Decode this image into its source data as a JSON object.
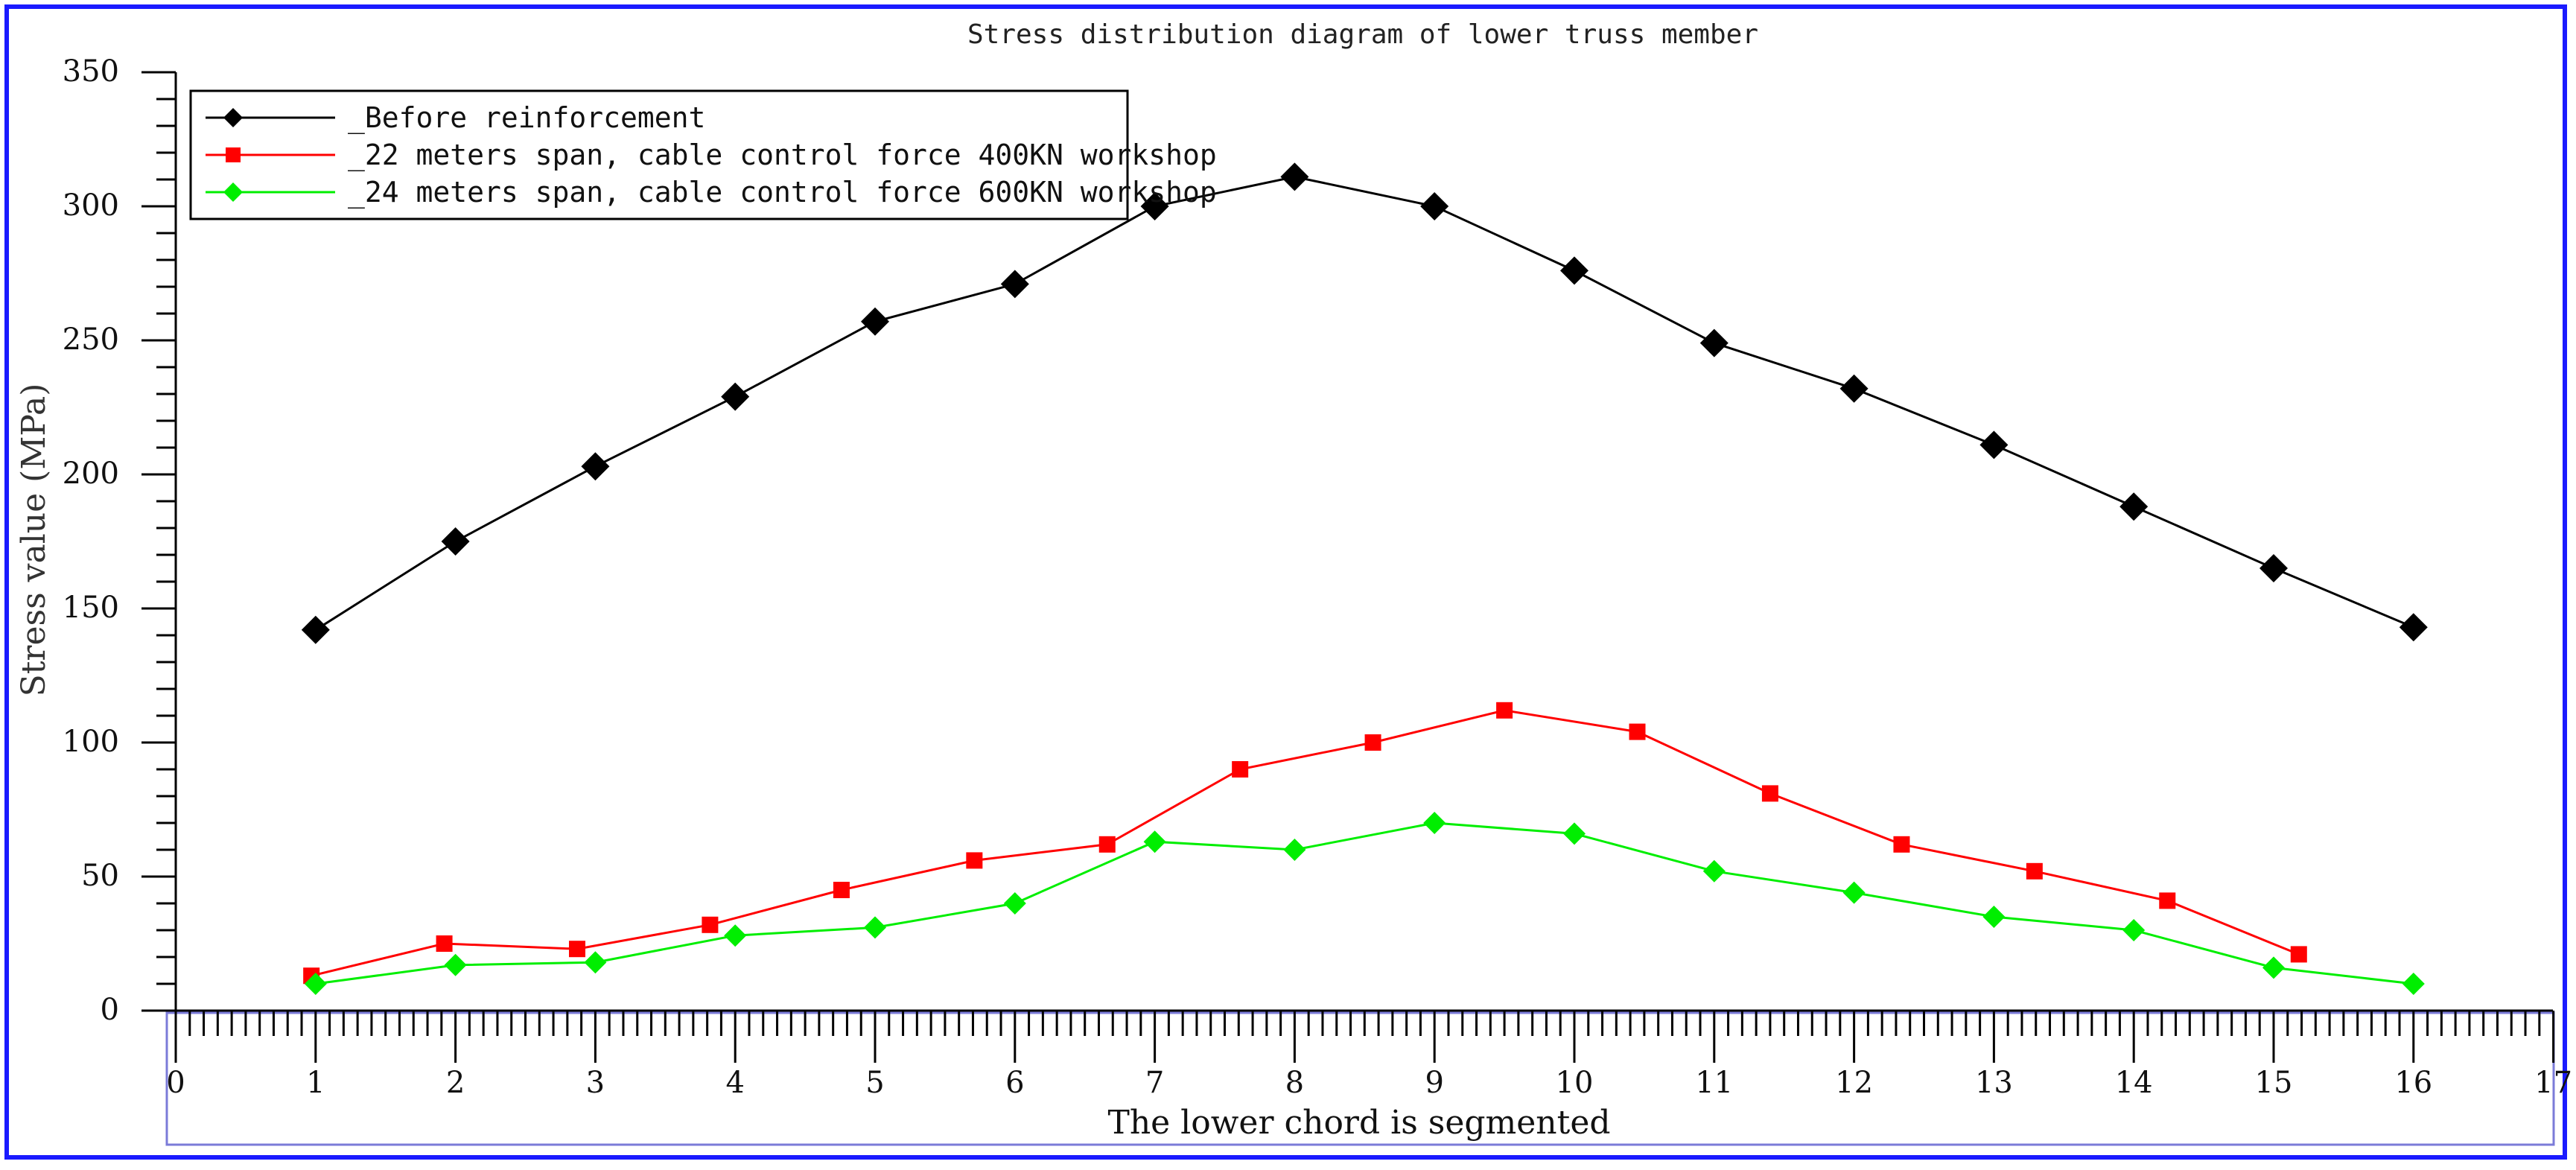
{
  "chart_data": {
    "type": "line",
    "title": "Stress distribution diagram of lower truss member",
    "xlabel": "The lower chord is segmented",
    "ylabel": "Stress value (MPa)",
    "xlim": [
      0,
      17
    ],
    "ylim": [
      0,
      350
    ],
    "xticks": [
      "0",
      "1",
      "2",
      "3",
      "4",
      "5",
      "6",
      "7",
      "8",
      "9",
      "10",
      "11",
      "12",
      "13",
      "14",
      "15",
      "16",
      "17"
    ],
    "yticks": [
      "0",
      "50",
      "100",
      "150",
      "200",
      "250",
      "300",
      "350"
    ],
    "grid": false,
    "legend_position": "top-left",
    "series": [
      {
        "name": "_Before reinforcement",
        "color": "#000000",
        "marker": "diamond",
        "x": [
          1,
          2,
          3,
          4,
          5,
          6,
          7,
          8,
          9,
          10,
          11,
          12,
          13,
          14,
          15,
          16
        ],
        "y": [
          142,
          175,
          203,
          229,
          257,
          271,
          300,
          311,
          300,
          276,
          249,
          232,
          211,
          188,
          165,
          143
        ]
      },
      {
        "name": "_22 meters span, cable control force 400KN workshop",
        "color": "#ff0000",
        "marker": "square",
        "x": [
          0.97,
          1.92,
          2.87,
          3.82,
          4.76,
          5.71,
          6.66,
          7.61,
          8.56,
          9.5,
          10.45,
          11.4,
          12.34,
          13.29,
          14.24,
          15.18
        ],
        "y": [
          13,
          25,
          23,
          32,
          45,
          56,
          62,
          90,
          100,
          112,
          104,
          81,
          62,
          52,
          41,
          21
        ]
      },
      {
        "name": "_24 meters span, cable control force 600KN workshop",
        "color": "#00ee00",
        "marker": "diamond",
        "x": [
          1,
          2,
          3,
          4,
          5,
          6,
          7,
          8,
          9,
          10,
          11,
          12,
          13,
          14,
          15,
          16
        ],
        "y": [
          10,
          17,
          18,
          28,
          31,
          40,
          63,
          60,
          70,
          66,
          52,
          44,
          35,
          30,
          16,
          10
        ]
      }
    ]
  }
}
